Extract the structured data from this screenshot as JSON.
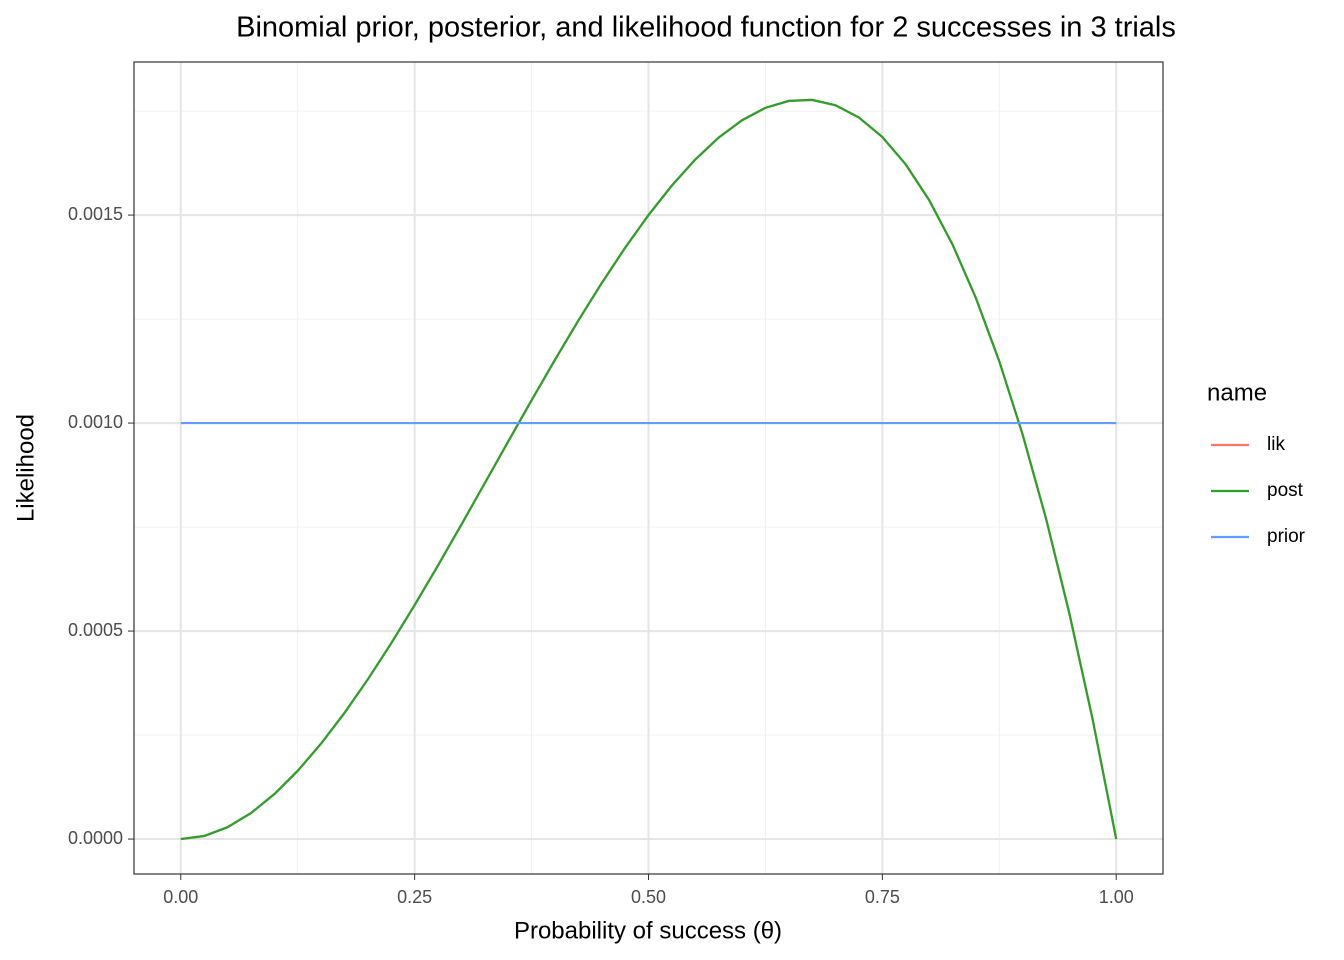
{
  "chart_data": {
    "type": "line",
    "title": "Binomial prior, posterior, and likelihood function for 2 successes in 3 trials",
    "xlabel": "Probability of success (θ)",
    "ylabel": "Likelihood",
    "legend_title": "name",
    "legend_position": "right",
    "grid": true,
    "x": [
      0,
      0.025,
      0.05,
      0.075,
      0.1,
      0.125,
      0.15,
      0.175,
      0.2,
      0.225,
      0.25,
      0.275,
      0.3,
      0.325,
      0.35,
      0.375,
      0.4,
      0.425,
      0.45,
      0.475,
      0.5,
      0.525,
      0.55,
      0.575,
      0.6,
      0.625,
      0.65,
      0.675,
      0.7,
      0.725,
      0.75,
      0.775,
      0.8,
      0.825,
      0.85,
      0.875,
      0.9,
      0.925,
      0.95,
      0.975,
      1
    ],
    "series": [
      {
        "name": "lik",
        "color": "#f8766d",
        "values": [
          0,
          7.3e-06,
          2.85e-05,
          6.24e-05,
          0.000108,
          0.000164,
          0.0002295,
          0.0003032,
          0.000384,
          0.0004708,
          0.0005625,
          0.0006579,
          0.000756,
          0.0008556,
          0.0009555,
          0.0010547,
          0.001152,
          0.0012463,
          0.0013365,
          0.0014214,
          0.0015,
          0.0015711,
          0.0016335,
          0.0016862,
          0.001728,
          0.0017578,
          0.0017745,
          0.0017769,
          0.001764,
          0.0017346,
          0.0016875,
          0.0016217,
          0.001536,
          0.0014293,
          0.0013005,
          0.0011484,
          0.000972,
          0.0007701,
          0.0005415,
          0.0002852,
          0
        ]
      },
      {
        "name": "post",
        "color": "#2ca02c",
        "values": [
          0,
          7.3e-06,
          2.85e-05,
          6.24e-05,
          0.000108,
          0.000164,
          0.0002295,
          0.0003032,
          0.000384,
          0.0004708,
          0.0005625,
          0.0006579,
          0.000756,
          0.0008556,
          0.0009555,
          0.0010547,
          0.001152,
          0.0012463,
          0.0013365,
          0.0014214,
          0.0015,
          0.0015711,
          0.0016335,
          0.0016862,
          0.001728,
          0.0017578,
          0.0017745,
          0.0017769,
          0.001764,
          0.0017346,
          0.0016875,
          0.0016217,
          0.001536,
          0.0014293,
          0.0013005,
          0.0011484,
          0.000972,
          0.0007701,
          0.0005415,
          0.0002852,
          0
        ]
      },
      {
        "name": "prior",
        "color": "#619cff",
        "values": [
          0.001,
          0.001,
          0.001,
          0.001,
          0.001,
          0.001,
          0.001,
          0.001,
          0.001,
          0.001,
          0.001,
          0.001,
          0.001,
          0.001,
          0.001,
          0.001,
          0.001,
          0.001,
          0.001,
          0.001,
          0.001,
          0.001,
          0.001,
          0.001,
          0.001,
          0.001,
          0.001,
          0.001,
          0.001,
          0.001,
          0.001,
          0.001,
          0.001,
          0.001,
          0.001,
          0.001,
          0.001,
          0.001,
          0.001,
          0.001,
          0.001
        ]
      }
    ],
    "xlim": [
      -0.05,
      1.05
    ],
    "xticks": [
      {
        "value": 0,
        "label": "0.00"
      },
      {
        "value": 0.25,
        "label": "0.25"
      },
      {
        "value": 0.5,
        "label": "0.50"
      },
      {
        "value": 0.75,
        "label": "0.75"
      },
      {
        "value": 1,
        "label": "1.00"
      }
    ],
    "ylim": [
      -8.4e-05,
      0.001868
    ],
    "yticks": [
      {
        "value": 0,
        "label": "0.0000"
      },
      {
        "value": 0.0005,
        "label": "0.0005"
      },
      {
        "value": 0.001,
        "label": "0.0010"
      },
      {
        "value": 0.0015,
        "label": "0.0015"
      }
    ]
  }
}
